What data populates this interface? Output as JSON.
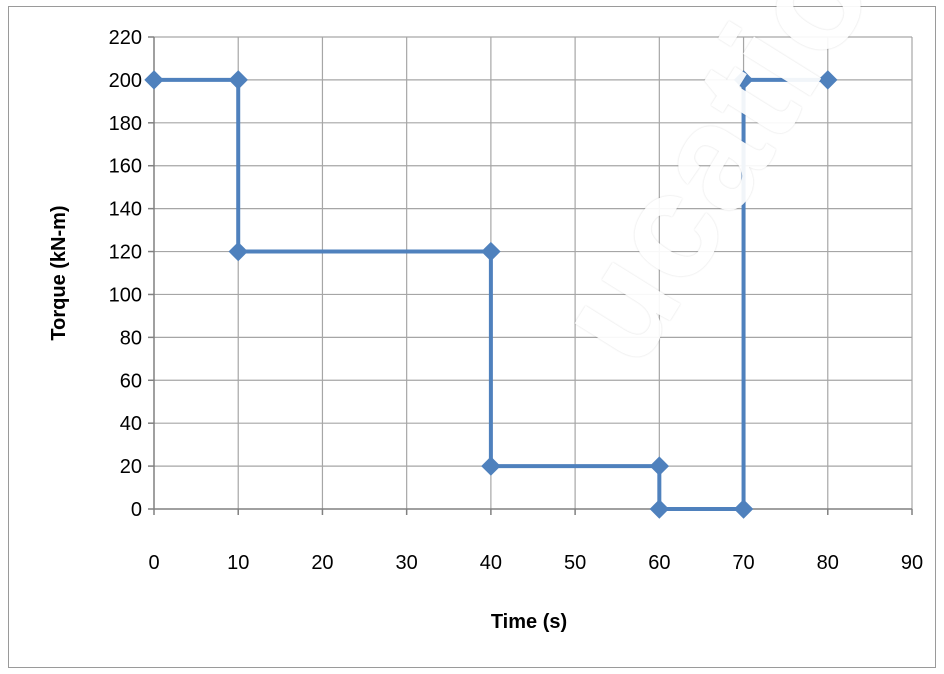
{
  "chart_data": {
    "type": "line",
    "title": "",
    "xlabel": "Time (s)",
    "ylabel": "Torque (kN-m)",
    "xlim": [
      0,
      90
    ],
    "ylim": [
      0,
      220
    ],
    "x_ticks": [
      0,
      10,
      20,
      30,
      40,
      50,
      60,
      70,
      80,
      90
    ],
    "y_ticks": [
      0,
      20,
      40,
      60,
      80,
      100,
      120,
      140,
      160,
      180,
      200,
      220
    ],
    "grid": true,
    "legend": "none",
    "series": [
      {
        "x": [
          0,
          10,
          10,
          40,
          40,
          60,
          60,
          70,
          70,
          80
        ],
        "y": [
          200,
          200,
          120,
          120,
          20,
          20,
          0,
          0,
          200,
          200
        ]
      }
    ]
  },
  "watermark": {
    "text": "ucation"
  },
  "colors": {
    "series": "#4f81bd",
    "grid": "#a6a6a6",
    "axis": "#808080",
    "text": "#000000"
  }
}
